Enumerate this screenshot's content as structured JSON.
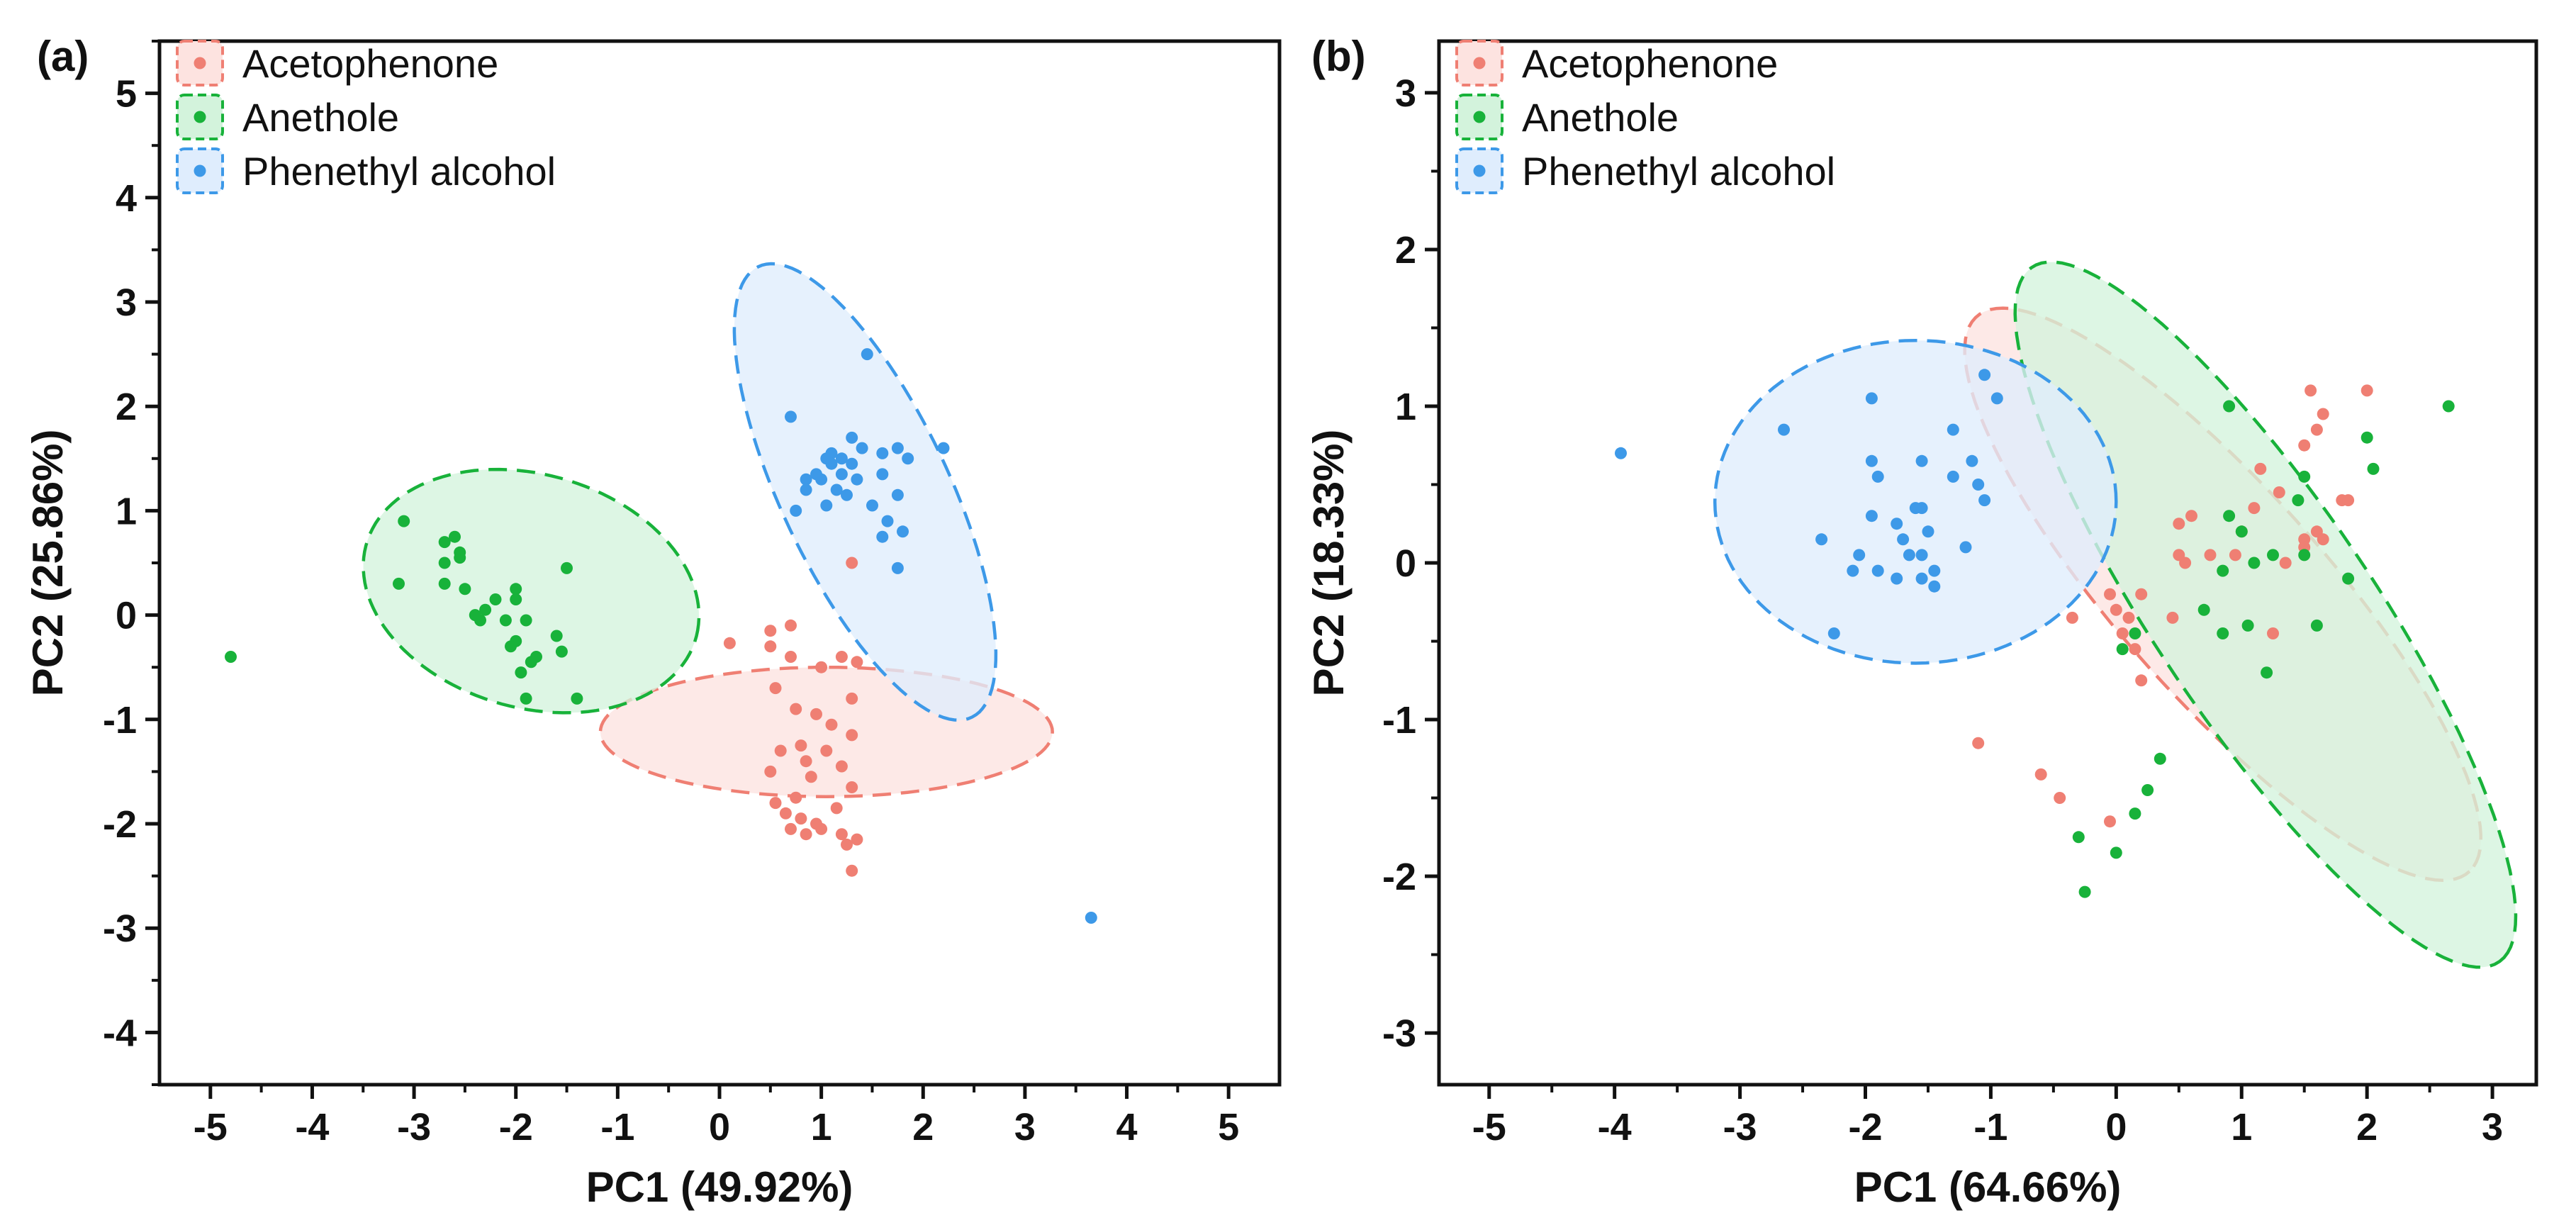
{
  "chart_data": [
    {
      "type": "scatter",
      "panel_label": "(a)",
      "xlabel": "PC1 (49.92%)",
      "ylabel": "PC2 (25.86%)",
      "xlim": [
        -5.5,
        5.5
      ],
      "ylim": [
        -4.5,
        5.5
      ],
      "xticks": [
        -5,
        -4,
        -3,
        -2,
        -1,
        0,
        1,
        2,
        3,
        4,
        5
      ],
      "yticks": [
        -4,
        -3,
        -2,
        -1,
        0,
        1,
        2,
        3,
        4,
        5
      ],
      "legend_position": "top-left",
      "series": [
        {
          "name": "Acetophenone",
          "color": "#ef7f73",
          "fill": "#fde3e0",
          "ellipse": {
            "cx": 1.05,
            "cy": -1.12,
            "rx": 0.62,
            "ry": 2.22,
            "angle_deg": 90
          },
          "points": [
            [
              0.1,
              -0.27
            ],
            [
              0.5,
              -0.15
            ],
            [
              0.7,
              -0.1
            ],
            [
              0.5,
              -0.3
            ],
            [
              0.7,
              -0.4
            ],
            [
              1.2,
              -0.4
            ],
            [
              1.35,
              -0.45
            ],
            [
              1.0,
              -0.5
            ],
            [
              0.55,
              -0.7
            ],
            [
              1.3,
              -0.8
            ],
            [
              0.75,
              -0.9
            ],
            [
              0.95,
              -0.95
            ],
            [
              1.1,
              -1.05
            ],
            [
              1.3,
              -1.15
            ],
            [
              0.8,
              -1.25
            ],
            [
              0.6,
              -1.3
            ],
            [
              1.05,
              -1.3
            ],
            [
              0.85,
              -1.4
            ],
            [
              1.2,
              -1.45
            ],
            [
              0.5,
              -1.5
            ],
            [
              0.9,
              -1.55
            ],
            [
              1.3,
              -1.65
            ],
            [
              0.75,
              -1.75
            ],
            [
              0.55,
              -1.8
            ],
            [
              1.15,
              -1.85
            ],
            [
              0.65,
              -1.9
            ],
            [
              0.8,
              -1.95
            ],
            [
              0.95,
              -2.0
            ],
            [
              1.0,
              -2.05
            ],
            [
              0.7,
              -2.05
            ],
            [
              1.2,
              -2.1
            ],
            [
              0.85,
              -2.1
            ],
            [
              1.35,
              -2.15
            ],
            [
              1.25,
              -2.2
            ],
            [
              1.3,
              -2.45
            ],
            [
              1.3,
              0.5
            ]
          ]
        },
        {
          "name": "Anethole",
          "color": "#18b23a",
          "fill": "#d3f3dc",
          "ellipse": {
            "cx": -1.85,
            "cy": 0.23,
            "rx": 1.68,
            "ry": 1.12,
            "angle_deg": -15
          },
          "points": [
            [
              -4.8,
              -0.4
            ],
            [
              -3.15,
              0.3
            ],
            [
              -3.1,
              0.9
            ],
            [
              -2.7,
              0.7
            ],
            [
              -2.6,
              0.75
            ],
            [
              -2.55,
              0.6
            ],
            [
              -2.7,
              0.5
            ],
            [
              -2.55,
              0.55
            ],
            [
              -2.7,
              0.3
            ],
            [
              -2.5,
              0.25
            ],
            [
              -2.2,
              0.15
            ],
            [
              -2.3,
              0.05
            ],
            [
              -2.0,
              0.15
            ],
            [
              -2.0,
              0.25
            ],
            [
              -2.4,
              0.0
            ],
            [
              -2.35,
              -0.05
            ],
            [
              -2.1,
              -0.05
            ],
            [
              -1.9,
              -0.05
            ],
            [
              -1.6,
              -0.2
            ],
            [
              -2.0,
              -0.25
            ],
            [
              -2.05,
              -0.3
            ],
            [
              -1.8,
              -0.4
            ],
            [
              -1.85,
              -0.45
            ],
            [
              -1.95,
              -0.55
            ],
            [
              -1.55,
              -0.35
            ],
            [
              -1.5,
              0.45
            ],
            [
              -1.9,
              -0.8
            ],
            [
              -1.4,
              -0.8
            ]
          ]
        },
        {
          "name": "Phenethyl alcohol",
          "color": "#3d99e8",
          "fill": "#dfedfd",
          "ellipse": {
            "cx": 1.43,
            "cy": 1.18,
            "rx": 2.4,
            "ry": 0.82,
            "angle_deg": -64
          },
          "points": [
            [
              3.65,
              -2.9
            ],
            [
              1.45,
              2.5
            ],
            [
              0.7,
              1.9
            ],
            [
              1.3,
              1.7
            ],
            [
              2.2,
              1.6
            ],
            [
              1.75,
              1.6
            ],
            [
              1.6,
              1.55
            ],
            [
              1.4,
              1.6
            ],
            [
              1.1,
              1.55
            ],
            [
              1.05,
              1.5
            ],
            [
              1.2,
              1.5
            ],
            [
              1.85,
              1.5
            ],
            [
              1.1,
              1.45
            ],
            [
              1.3,
              1.45
            ],
            [
              0.95,
              1.35
            ],
            [
              1.2,
              1.35
            ],
            [
              1.6,
              1.35
            ],
            [
              0.85,
              1.3
            ],
            [
              1.0,
              1.3
            ],
            [
              1.35,
              1.3
            ],
            [
              0.85,
              1.2
            ],
            [
              1.15,
              1.2
            ],
            [
              1.25,
              1.15
            ],
            [
              1.75,
              1.15
            ],
            [
              1.05,
              1.05
            ],
            [
              1.5,
              1.05
            ],
            [
              0.75,
              1.0
            ],
            [
              1.65,
              0.9
            ],
            [
              1.8,
              0.8
            ],
            [
              1.6,
              0.75
            ],
            [
              1.75,
              0.45
            ]
          ]
        }
      ]
    },
    {
      "type": "scatter",
      "panel_label": "(b)",
      "xlabel": "PC1 (64.66%)",
      "ylabel": "PC2 (18.33%)",
      "xlim": [
        -5.4,
        3.35
      ],
      "ylim": [
        -3.33,
        3.33
      ],
      "xticks": [
        -5,
        -4,
        -3,
        -2,
        -1,
        0,
        1,
        2,
        3
      ],
      "yticks": [
        -3,
        -2,
        -1,
        0,
        1,
        2,
        3
      ],
      "legend_position": "top-left",
      "series": [
        {
          "name": "Acetophenone",
          "color": "#ef7f73",
          "fill": "#fde3e0",
          "ellipse": {
            "cx": 0.85,
            "cy": -0.2,
            "rx": 2.65,
            "ry": 0.74,
            "angle_deg": -41
          },
          "points": [
            [
              -1.1,
              -1.15
            ],
            [
              -0.6,
              -1.35
            ],
            [
              -0.45,
              -1.5
            ],
            [
              -0.05,
              -1.65
            ],
            [
              -0.35,
              -0.35
            ],
            [
              -0.05,
              -0.2
            ],
            [
              0.0,
              -0.3
            ],
            [
              0.05,
              -0.45
            ],
            [
              0.1,
              -0.35
            ],
            [
              0.2,
              -0.2
            ],
            [
              0.15,
              -0.55
            ],
            [
              0.2,
              -0.75
            ],
            [
              0.45,
              -0.35
            ],
            [
              0.5,
              0.25
            ],
            [
              0.5,
              0.05
            ],
            [
              0.55,
              0.0
            ],
            [
              0.75,
              0.05
            ],
            [
              0.95,
              0.05
            ],
            [
              1.1,
              0.35
            ],
            [
              1.15,
              0.6
            ],
            [
              1.25,
              -0.45
            ],
            [
              1.35,
              0.0
            ],
            [
              1.3,
              0.45
            ],
            [
              1.5,
              0.15
            ],
            [
              1.5,
              0.75
            ],
            [
              1.55,
              1.1
            ],
            [
              1.6,
              0.85
            ],
            [
              1.6,
              0.2
            ],
            [
              1.65,
              0.95
            ],
            [
              1.65,
              0.15
            ],
            [
              1.8,
              0.4
            ],
            [
              1.85,
              0.4
            ],
            [
              2.0,
              1.1
            ],
            [
              1.5,
              0.1
            ],
            [
              0.6,
              0.3
            ],
            [
              1.0,
              0.2
            ]
          ]
        },
        {
          "name": "Anethole",
          "color": "#18b23a",
          "fill": "#d3f3dc",
          "ellipse": {
            "cx": 1.19,
            "cy": -0.33,
            "rx": 2.9,
            "ry": 0.8,
            "angle_deg": -49
          },
          "points": [
            [
              2.65,
              1.0
            ],
            [
              2.0,
              0.8
            ],
            [
              2.05,
              0.6
            ],
            [
              1.5,
              0.55
            ],
            [
              1.45,
              0.4
            ],
            [
              1.0,
              0.2
            ],
            [
              1.1,
              0.0
            ],
            [
              0.9,
              0.3
            ],
            [
              0.85,
              -0.05
            ],
            [
              0.7,
              -0.3
            ],
            [
              1.25,
              0.05
            ],
            [
              1.5,
              0.05
            ],
            [
              1.85,
              -0.1
            ],
            [
              1.6,
              -0.4
            ],
            [
              1.2,
              -0.7
            ],
            [
              1.05,
              -0.4
            ],
            [
              0.85,
              -0.45
            ],
            [
              0.15,
              -0.45
            ],
            [
              0.05,
              -0.55
            ],
            [
              0.35,
              -1.25
            ],
            [
              0.25,
              -1.45
            ],
            [
              0.15,
              -1.6
            ],
            [
              0.0,
              -1.85
            ],
            [
              -0.3,
              -1.75
            ],
            [
              -0.25,
              -2.1
            ],
            [
              0.9,
              1.0
            ]
          ]
        },
        {
          "name": "Phenethyl alcohol",
          "color": "#3d99e8",
          "fill": "#dfedfd",
          "ellipse": {
            "cx": -1.6,
            "cy": 0.39,
            "rx": 1.6,
            "ry": 1.03,
            "angle_deg": 0
          },
          "points": [
            [
              -3.95,
              0.7
            ],
            [
              -2.65,
              0.85
            ],
            [
              -1.95,
              1.05
            ],
            [
              -1.05,
              1.2
            ],
            [
              -0.95,
              1.05
            ],
            [
              -1.3,
              0.85
            ],
            [
              -1.15,
              0.65
            ],
            [
              -1.95,
              0.65
            ],
            [
              -1.55,
              0.65
            ],
            [
              -1.9,
              0.55
            ],
            [
              -1.1,
              0.5
            ],
            [
              -1.05,
              0.4
            ],
            [
              -1.3,
              0.55
            ],
            [
              -1.6,
              0.35
            ],
            [
              -1.55,
              0.35
            ],
            [
              -1.95,
              0.3
            ],
            [
              -1.75,
              0.25
            ],
            [
              -1.7,
              0.15
            ],
            [
              -1.5,
              0.2
            ],
            [
              -2.35,
              0.15
            ],
            [
              -2.05,
              0.05
            ],
            [
              -1.9,
              -0.05
            ],
            [
              -1.65,
              0.05
            ],
            [
              -1.55,
              0.05
            ],
            [
              -1.75,
              -0.1
            ],
            [
              -1.45,
              -0.05
            ],
            [
              -1.55,
              -0.1
            ],
            [
              -1.45,
              -0.15
            ],
            [
              -2.1,
              -0.05
            ],
            [
              -2.25,
              -0.45
            ],
            [
              -1.2,
              0.1
            ]
          ]
        }
      ]
    }
  ]
}
